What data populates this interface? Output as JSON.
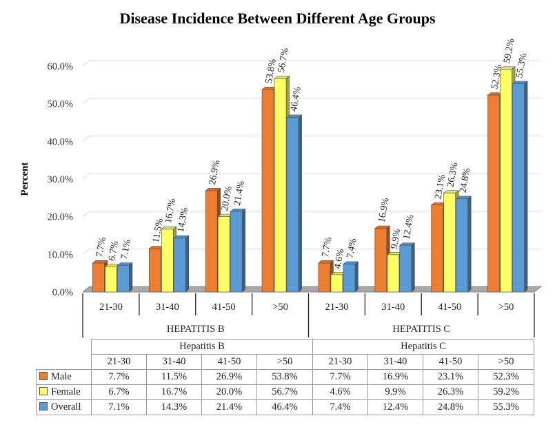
{
  "chart_data": {
    "type": "bar",
    "title": "Disease Incidence Between Different Age Groups",
    "ylabel": "Percent",
    "xlabel": "",
    "ylim": [
      0,
      60
    ],
    "yticks": [
      "0.0%",
      "10.0%",
      "20.0%",
      "30.0%",
      "40.0%",
      "50.0%",
      "60.0%"
    ],
    "groups": [
      {
        "label": "HEPATITIS B",
        "table_label": "Hepatitis B",
        "categories": [
          "21-30",
          "31-40",
          "41-50",
          ">50"
        ]
      },
      {
        "label": "HEPATITIS C",
        "table_label": "Hepatitis C",
        "categories": [
          "21-30",
          "31-40",
          "41-50",
          ">50"
        ]
      }
    ],
    "series": [
      {
        "name": "Male",
        "color": "#ED7D31",
        "values": [
          7.7,
          11.5,
          26.9,
          53.8,
          7.7,
          16.9,
          23.1,
          52.3
        ],
        "labels": [
          "7.7%",
          "11.5%",
          "26.9%",
          "53.8%",
          "7.7%",
          "16.9%",
          "23.1%",
          "52.3%"
        ]
      },
      {
        "name": "Female",
        "color": "#FFFF66",
        "values": [
          6.7,
          16.7,
          20.0,
          56.7,
          4.6,
          9.9,
          26.3,
          59.2
        ],
        "labels": [
          "6.7%",
          "16.7%",
          "20.0%",
          "56.7%",
          "4.6%",
          "9.9%",
          "26.3%",
          "59.2%"
        ]
      },
      {
        "name": "Overall",
        "color": "#5B9BD5",
        "values": [
          7.1,
          14.3,
          21.4,
          46.4,
          7.4,
          12.4,
          24.8,
          55.3
        ],
        "labels": [
          "7.1%",
          "14.3%",
          "21.4%",
          "46.4%",
          "7.4%",
          "12.4%",
          "24.8%",
          "55.3%"
        ]
      }
    ],
    "grid": true,
    "style": "3d-clustered-column",
    "data_table": true
  }
}
